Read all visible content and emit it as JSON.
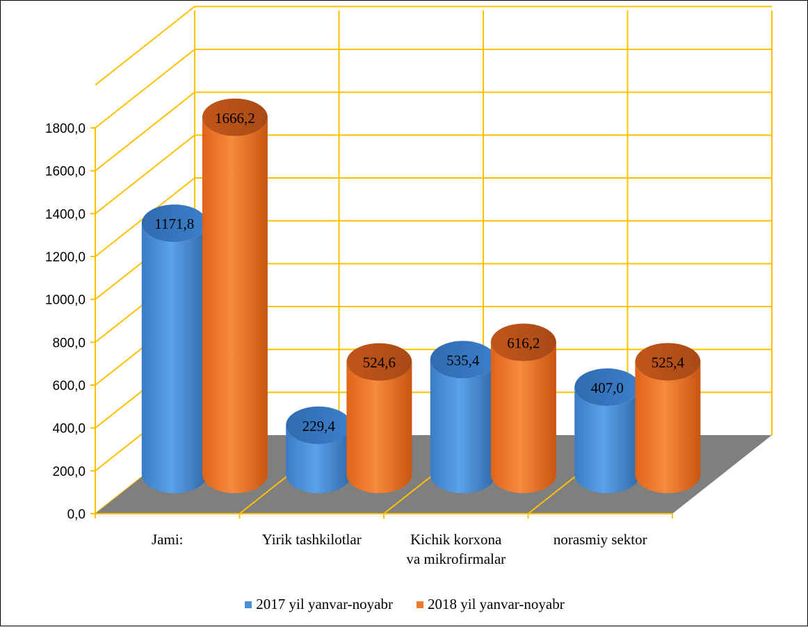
{
  "chart_data": {
    "type": "bar",
    "categories": [
      "Jami:",
      "Yirik tashkilotlar",
      "Kichik korxona va mikrofirmalar",
      "norasmiy sektor"
    ],
    "category_lines": [
      [
        "Jami:"
      ],
      [
        "Yirik tashkilotlar"
      ],
      [
        "Kichik korxona",
        "va mikrofirmalar"
      ],
      [
        "norasmiy sektor"
      ]
    ],
    "series": [
      {
        "name": "2017 yil yanvar-noyabr",
        "color": "#4a8fd8",
        "values": [
          1171.8,
          229.4,
          535.4,
          407.0
        ],
        "labels": [
          "1171,8",
          "229,4",
          "535,4",
          "407,0"
        ]
      },
      {
        "name": "2018 yil yanvar-noyabr",
        "color": "#f07a2c",
        "values": [
          1666.2,
          524.6,
          616.2,
          525.4
        ],
        "labels": [
          "1666,2",
          "524,6",
          "616,2",
          "525,4"
        ]
      }
    ],
    "ylim": [
      0,
      1800
    ],
    "yticks": [
      0,
      200,
      400,
      600,
      800,
      1000,
      1200,
      1400,
      1600,
      1800
    ],
    "ytick_labels": [
      "0,0",
      "200,0",
      "400,0",
      "600,0",
      "800,0",
      "1000,0",
      "1200,0",
      "1400,0",
      "1600,0",
      "1800,0"
    ],
    "bar_shape": "3d-cylinder",
    "grid": true,
    "grid_color": "#ffc000",
    "floor_color": "#7f7f7f",
    "legend_position": "bottom",
    "title": "",
    "xlabel": "",
    "ylabel": ""
  }
}
